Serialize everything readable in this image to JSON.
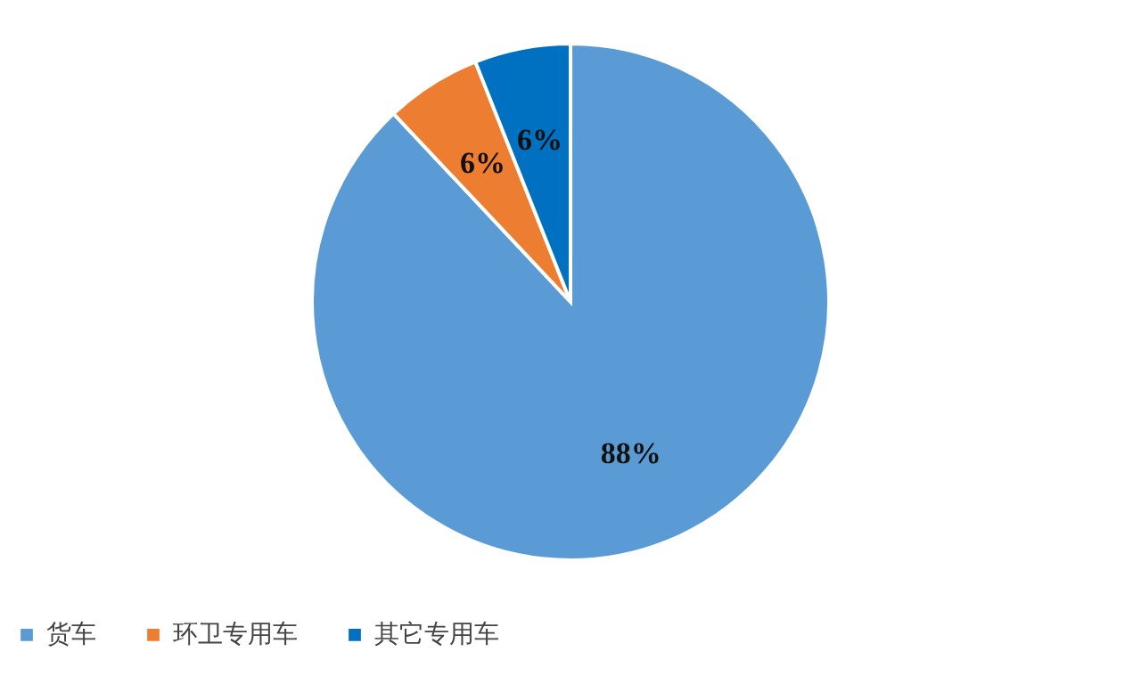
{
  "chart_data": {
    "type": "pie",
    "categories": [
      "货车",
      "环卫专用车",
      "其它专用车"
    ],
    "values": [
      88,
      6,
      6
    ],
    "colors": [
      "#5b9bd5",
      "#ed7d31",
      "#0070c0"
    ],
    "value_labels": [
      "88%",
      "6%",
      "6%"
    ],
    "legend": "bottom"
  }
}
